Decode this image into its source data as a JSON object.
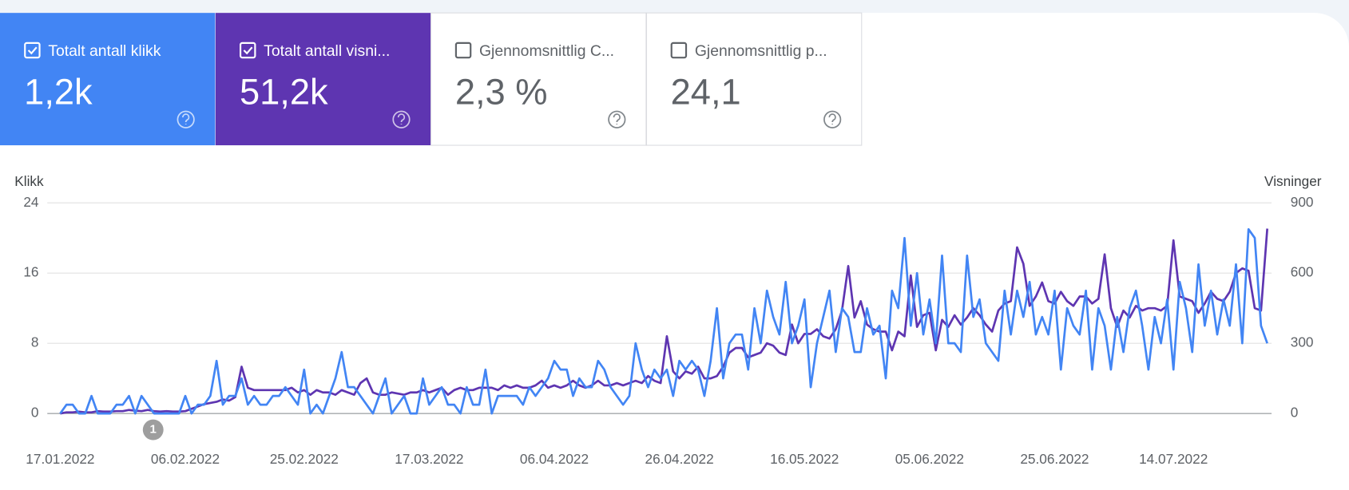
{
  "cards": [
    {
      "label": "Totalt antall klikk",
      "value": "1,2k",
      "checked": true,
      "color": "#4285f4"
    },
    {
      "label": "Totalt antall visni...",
      "value": "51,2k",
      "checked": true,
      "color": "#5e35b1"
    },
    {
      "label": "Gjennomsnittlig C...",
      "value": "2,3 %",
      "checked": false,
      "color": "#ffffff"
    },
    {
      "label": "Gjennomsnittlig p...",
      "value": "24,1",
      "checked": false,
      "color": "#ffffff"
    }
  ],
  "annotation": "1",
  "chart_data": {
    "type": "line",
    "y_label": "Klikk",
    "y2_label": "Visninger",
    "categories": [
      "17.01.2022",
      null,
      null,
      null,
      null,
      null,
      null,
      null,
      null,
      null,
      null,
      null,
      null,
      null,
      null,
      null,
      null,
      null,
      null,
      null,
      "06.02.2022",
      null,
      null,
      null,
      null,
      null,
      null,
      null,
      null,
      null,
      null,
      null,
      null,
      null,
      null,
      null,
      null,
      null,
      null,
      "25.02.2022",
      null,
      null,
      null,
      null,
      null,
      null,
      null,
      null,
      null,
      null,
      null,
      null,
      null,
      null,
      null,
      null,
      null,
      null,
      null,
      "17.03.2022",
      null,
      null,
      null,
      null,
      null,
      null,
      null,
      null,
      null,
      null,
      null,
      null,
      null,
      null,
      null,
      null,
      null,
      null,
      null,
      "06.04.2022",
      null,
      null,
      null,
      null,
      null,
      null,
      null,
      null,
      null,
      null,
      null,
      null,
      null,
      null,
      null,
      null,
      null,
      null,
      null,
      "26.04.2022",
      null,
      null,
      null,
      null,
      null,
      null,
      null,
      null,
      null,
      null,
      null,
      null,
      null,
      null,
      null,
      null,
      null,
      null,
      null,
      "16.05.2022",
      null,
      null,
      null,
      null,
      null,
      null,
      null,
      null,
      null,
      null,
      null,
      null,
      null,
      null,
      null,
      null,
      null,
      null,
      null,
      "05.06.2022",
      null,
      null,
      null,
      null,
      null,
      null,
      null,
      null,
      null,
      null,
      null,
      null,
      null,
      null,
      null,
      null,
      null,
      null,
      null,
      "25.06.2022",
      null,
      null,
      null,
      null,
      null,
      null,
      null,
      null,
      null,
      null,
      null,
      null,
      null,
      null,
      null,
      null,
      null,
      null,
      "14.07.2022",
      null,
      null,
      null,
      null,
      null,
      null,
      null,
      null,
      null,
      null,
      null,
      null,
      null,
      null,
      null
    ],
    "series": [
      {
        "name": "Totalt antall klikk",
        "color": "#4285f4",
        "values": [
          0,
          1,
          1,
          0,
          0,
          2,
          0,
          0,
          0,
          1,
          1,
          2,
          0,
          2,
          1,
          0,
          0,
          0,
          0,
          0,
          2,
          0,
          1,
          1,
          2,
          6,
          1,
          2,
          2,
          4,
          1,
          2,
          1,
          1,
          2,
          2,
          3,
          2,
          1,
          5,
          0,
          1,
          0,
          2,
          4,
          7,
          3,
          3,
          2,
          1,
          0,
          2,
          4,
          0,
          1,
          2,
          0,
          0,
          4,
          1,
          2,
          3,
          1,
          1,
          0,
          3,
          1,
          1,
          5,
          0,
          2,
          2,
          2,
          2,
          1,
          3,
          2,
          3,
          4,
          6,
          5,
          5,
          2,
          4,
          3,
          3,
          6,
          5,
          3,
          2,
          1,
          2,
          8,
          5,
          3,
          5,
          4,
          5,
          2,
          6,
          5,
          6,
          5,
          2,
          6,
          12,
          4,
          8,
          9,
          9,
          5,
          12,
          8,
          14,
          11,
          9,
          15,
          8,
          10,
          13,
          3,
          8,
          11,
          14,
          7,
          12,
          11,
          7,
          7,
          12,
          9,
          10,
          4,
          14,
          12,
          20,
          10,
          16,
          9,
          13,
          8,
          18,
          8,
          8,
          7,
          18,
          11,
          13,
          8,
          7,
          6,
          14,
          9,
          14,
          11,
          15,
          9,
          11,
          9,
          14,
          5,
          12,
          10,
          9,
          14,
          5,
          12,
          10,
          5,
          11,
          7,
          12,
          14,
          10,
          5,
          11,
          8,
          13,
          5,
          15,
          12,
          7,
          17,
          10,
          14,
          9,
          13,
          10,
          17,
          8,
          21,
          20,
          10,
          8
        ]
      },
      {
        "name": "Totalt antall visninger",
        "color": "#5e35b1",
        "axis": "y2",
        "values": [
          0,
          5,
          5,
          8,
          5,
          5,
          10,
          8,
          8,
          10,
          10,
          15,
          12,
          10,
          15,
          10,
          8,
          10,
          8,
          8,
          10,
          20,
          30,
          40,
          45,
          50,
          60,
          55,
          70,
          200,
          110,
          100,
          100,
          100,
          100,
          100,
          100,
          110,
          90,
          100,
          80,
          100,
          90,
          90,
          80,
          100,
          90,
          80,
          130,
          150,
          90,
          80,
          80,
          90,
          85,
          80,
          90,
          90,
          100,
          90,
          100,
          110,
          80,
          100,
          110,
          100,
          100,
          110,
          110,
          110,
          100,
          120,
          110,
          120,
          110,
          110,
          120,
          140,
          110,
          120,
          110,
          120,
          140,
          120,
          110,
          120,
          140,
          120,
          120,
          130,
          120,
          130,
          140,
          130,
          160,
          140,
          130,
          330,
          180,
          150,
          180,
          170,
          200,
          150,
          150,
          160,
          200,
          260,
          280,
          280,
          240,
          250,
          260,
          300,
          290,
          260,
          250,
          380,
          300,
          340,
          340,
          360,
          330,
          320,
          360,
          440,
          630,
          410,
          480,
          380,
          360,
          350,
          350,
          270,
          350,
          330,
          590,
          370,
          420,
          430,
          270,
          400,
          370,
          420,
          380,
          410,
          450,
          420,
          380,
          350,
          440,
          470,
          480,
          710,
          640,
          460,
          500,
          560,
          480,
          470,
          520,
          480,
          460,
          500,
          500,
          470,
          490,
          680,
          450,
          370,
          440,
          410,
          460,
          440,
          450,
          450,
          440,
          460,
          740,
          500,
          490,
          480,
          430,
          470,
          520,
          490,
          480,
          520,
          600,
          620,
          610,
          450,
          440,
          790
        ]
      }
    ],
    "ylim": [
      0,
      24
    ],
    "yticks": [
      0,
      8,
      16,
      24
    ],
    "y2lim": [
      0,
      900
    ],
    "y2ticks": [
      0,
      300,
      600,
      900
    ],
    "grid": true
  }
}
